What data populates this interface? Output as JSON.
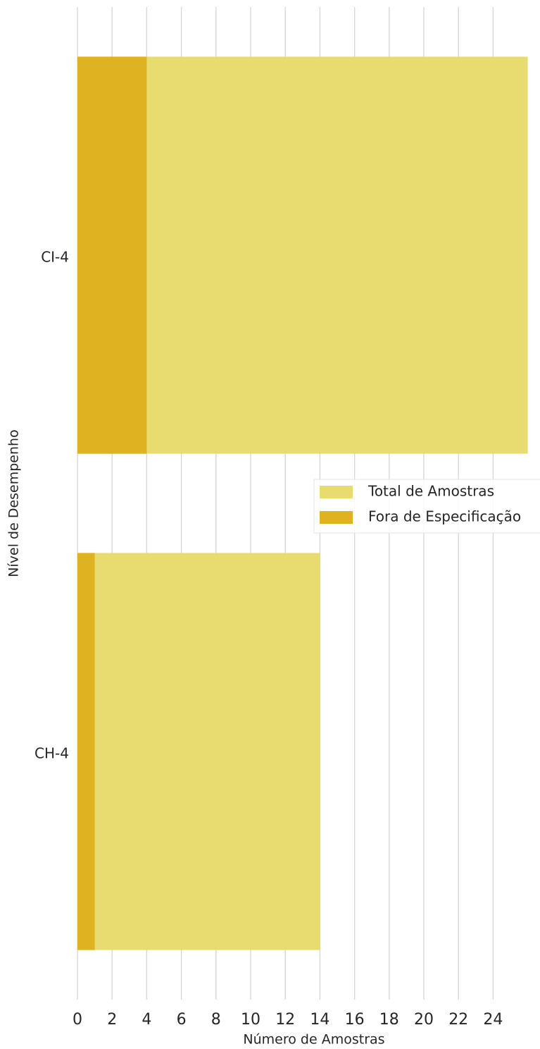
{
  "chart_data": {
    "type": "bar",
    "orientation": "horizontal",
    "barmode": "overlay",
    "categories": [
      "CI-4",
      "CH-4"
    ],
    "series": [
      {
        "name": "Total de Amostras",
        "color": "#e8db6f",
        "values": [
          26,
          14
        ]
      },
      {
        "name": "Fora de Especificação",
        "color": "#dfb222",
        "values": [
          4,
          1
        ]
      }
    ],
    "xlabel": "Número de Amostras",
    "ylabel": "Nível de Desempenho",
    "xlim": [
      0,
      26
    ],
    "xticks": [
      0,
      2,
      4,
      6,
      8,
      10,
      12,
      14,
      16,
      18,
      20,
      22,
      24
    ],
    "grid": true,
    "legend": "right"
  }
}
